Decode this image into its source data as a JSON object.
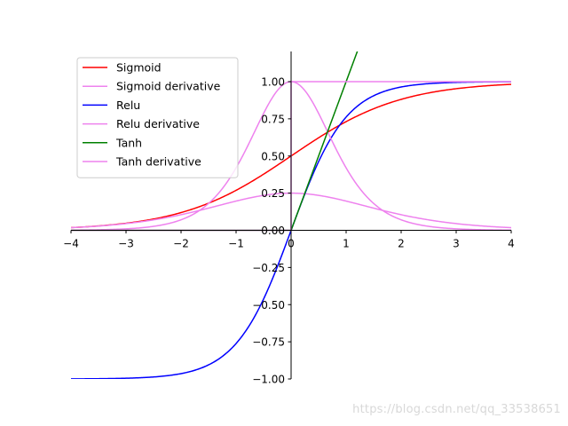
{
  "chart_data": {
    "type": "line",
    "xlim": [
      -4,
      4
    ],
    "ylim": [
      -1,
      1.2
    ],
    "x_ticks": [
      "−4",
      "−3",
      "−2",
      "−1",
      "0",
      "1",
      "2",
      "3",
      "4"
    ],
    "y_ticks": [
      "−1.00",
      "−0.75",
      "−0.50",
      "−0.25",
      "0.00",
      "0.25",
      "0.50",
      "0.75",
      "1.00"
    ],
    "grid": false,
    "legend_position": "upper-left",
    "series": [
      {
        "name": "Sigmoid",
        "color": "#ff0000",
        "function": "sigmoid",
        "x": [
          -4,
          -3,
          -2,
          -1,
          0,
          1,
          2,
          3,
          4
        ],
        "y": [
          0.018,
          0.047,
          0.119,
          0.269,
          0.5,
          0.731,
          0.881,
          0.953,
          0.982
        ]
      },
      {
        "name": "Sigmoid derivative",
        "color": "#ee82ee",
        "function": "sigmoid_derivative",
        "x": [
          -4,
          -3,
          -2,
          -1,
          0,
          1,
          2,
          3,
          4
        ],
        "y": [
          0.018,
          0.045,
          0.105,
          0.197,
          0.25,
          0.197,
          0.105,
          0.045,
          0.018
        ]
      },
      {
        "name": "Relu",
        "color": "#0000ff",
        "function": "relu",
        "x": [
          -4,
          -3,
          -2,
          -1,
          0,
          1,
          2,
          3,
          4
        ],
        "y": [
          -0.999,
          -0.995,
          -0.964,
          -0.762,
          0,
          0.762,
          0.964,
          0.995,
          0.999
        ]
      },
      {
        "name": "Relu derivative",
        "color": "#ee82ee",
        "function": "relu_derivative",
        "x": [
          -4,
          -3,
          -2,
          -1,
          0,
          1,
          2,
          3,
          4
        ],
        "y": [
          0.001,
          0.01,
          0.071,
          0.42,
          1.0,
          0.42,
          0.071,
          0.01,
          0.001
        ]
      },
      {
        "name": "Tanh",
        "color": "#008000",
        "function": "tanh",
        "x": [
          -4,
          -3,
          -2,
          -1,
          0,
          1,
          1.2
        ],
        "y": [
          0,
          0,
          0,
          0,
          0,
          1,
          1.2
        ]
      },
      {
        "name": "Tanh derivative",
        "color": "#ee82ee",
        "function": "tanh_derivative",
        "x": [
          -4,
          -3,
          -2,
          -1,
          0,
          0.001,
          1,
          2,
          3,
          4
        ],
        "y": [
          0,
          0,
          0,
          0,
          0,
          1,
          1,
          1,
          1,
          1
        ]
      }
    ]
  },
  "watermark": "https://blog.csdn.net/qq_33538651"
}
